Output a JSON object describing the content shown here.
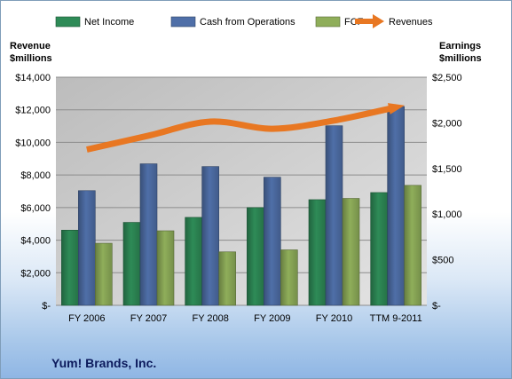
{
  "chart_data": {
    "type": "bar",
    "title": "Yum! Brands, Inc.",
    "categories": [
      "FY 2006",
      "FY 2007",
      "FY 2008",
      "FY 2009",
      "FY 2010",
      "TTM 9-2011"
    ],
    "series": [
      {
        "name": "Net Income",
        "axis": "right",
        "type": "bar",
        "color": "#2e8b57",
        "values": [
          824,
          909,
          964,
          1071,
          1158,
          1236
        ]
      },
      {
        "name": "Cash from Operations",
        "axis": "right",
        "type": "bar",
        "color": "#4f6fa8",
        "values": [
          1257,
          1551,
          1521,
          1404,
          1968,
          2179
        ]
      },
      {
        "name": "FCF",
        "axis": "right",
        "type": "bar",
        "color": "#8fae5a",
        "values": [
          680,
          817,
          586,
          608,
          1172,
          1315
        ]
      },
      {
        "name": "Revenues",
        "axis": "left",
        "type": "line",
        "color": "#e87722",
        "values": [
          9561,
          10416,
          11279,
          10836,
          11343,
          12158
        ]
      }
    ],
    "left_axis": {
      "label_line1": "Revenue",
      "label_line2": "$millions",
      "ylim": [
        0,
        14000
      ],
      "ticks": [
        "$-",
        "$2,000",
        "$4,000",
        "$6,000",
        "$8,000",
        "$10,000",
        "$12,000",
        "$14,000"
      ]
    },
    "right_axis": {
      "label_line1": "Earnings",
      "label_line2": "$millions",
      "ylim": [
        0,
        2500
      ],
      "ticks": [
        "$-",
        "$500",
        "$1,000",
        "$1,500",
        "$2,000",
        "$2,500"
      ]
    },
    "grid": true,
    "legend_position": "top"
  }
}
